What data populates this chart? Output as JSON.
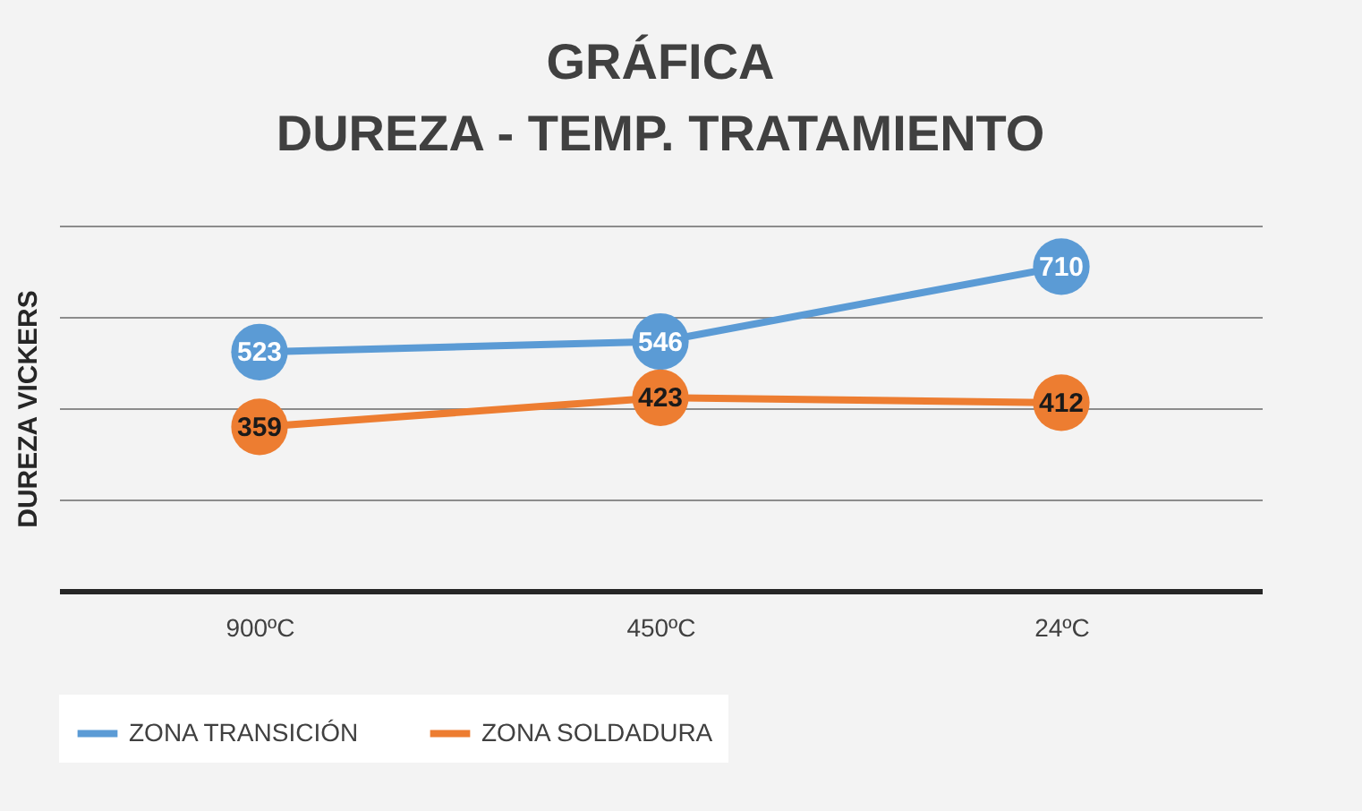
{
  "chart_data": {
    "type": "line",
    "title": "GRÁFICA\nDUREZA - TEMP. TRATAMIENTO",
    "ylabel": "DUREZA VICKERS",
    "categories": [
      "900ºC",
      "450ºC",
      "24ºC"
    ],
    "series": [
      {
        "name": "ZONA TRANSICIÓN",
        "color": "#5b9bd5",
        "values": [
          523,
          546,
          710
        ]
      },
      {
        "name": "ZONA SOLDADURA",
        "color": "#ed7d31",
        "values": [
          359,
          423,
          412
        ]
      }
    ],
    "ylim": [
      0,
      800
    ],
    "yticks": [
      {
        "value": 0,
        "label": null
      },
      {
        "value": 200,
        "label": null
      },
      {
        "value": 400,
        "label": null
      },
      {
        "value": 600,
        "label": null
      },
      {
        "value": 800,
        "label": null
      }
    ],
    "tick_labels": "x",
    "grid": "y",
    "legend": "bottom",
    "marker": "circle",
    "data_labels": true
  }
}
